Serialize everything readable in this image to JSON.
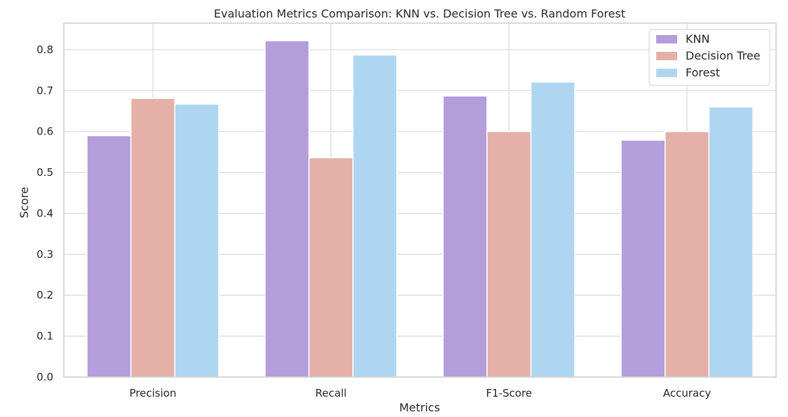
{
  "chart_data": {
    "type": "bar",
    "title": "Evaluation Metrics Comparison: KNN vs. Decision Tree vs. Random Forest",
    "xlabel": "Metrics",
    "ylabel": "Score",
    "categories": [
      "Precision",
      "Recall",
      "F1-Score",
      "Accuracy"
    ],
    "series": [
      {
        "name": "KNN",
        "values": [
          0.59,
          0.822,
          0.687,
          0.579
        ],
        "color": "#b39ddb"
      },
      {
        "name": "Decision Tree",
        "values": [
          0.681,
          0.536,
          0.6,
          0.6
        ],
        "color": "#e4b0a8"
      },
      {
        "name": "Forest",
        "values": [
          0.667,
          0.787,
          0.721,
          0.66
        ],
        "color": "#afd6f0"
      }
    ],
    "ylim": [
      0,
      0.865
    ],
    "yticks": [
      0.0,
      0.1,
      0.2,
      0.3,
      0.4,
      0.5,
      0.6,
      0.7,
      0.8
    ],
    "ytick_labels": [
      "0.0",
      "0.1",
      "0.2",
      "0.3",
      "0.4",
      "0.5",
      "0.6",
      "0.7",
      "0.8"
    ],
    "grid": true,
    "legend_position": "top-right"
  }
}
